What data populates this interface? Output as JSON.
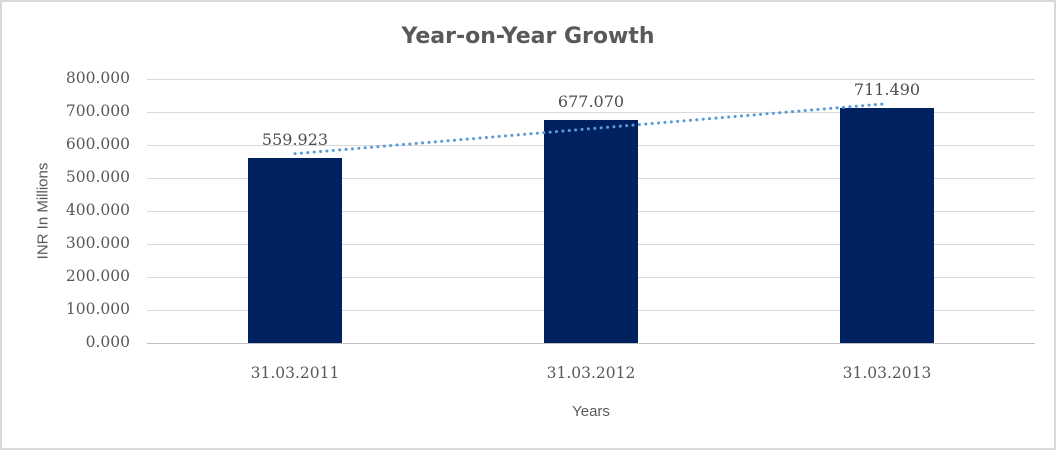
{
  "chart_data": {
    "type": "bar",
    "title": "Year-on-Year Growth",
    "xlabel": "Years",
    "ylabel": "INR In Millions",
    "categories": [
      "31.03.2011",
      "31.03.2012",
      "31.03.2013"
    ],
    "values": [
      559.923,
      677.07,
      711.49
    ],
    "data_labels": [
      "559.923",
      "677.070",
      "711.490"
    ],
    "ylim": [
      0,
      800
    ],
    "ytick_step": 100,
    "ytick_labels": [
      "0.000",
      "100.000",
      "200.000",
      "300.000",
      "400.000",
      "500.000",
      "600.000",
      "700.000",
      "800.000"
    ],
    "grid": true,
    "legend": "none",
    "trendline": {
      "type": "linear",
      "style": "dotted"
    },
    "colors": {
      "bar": "#00215f",
      "trendline": "#5b9bd5",
      "grid": "#d9d9d9",
      "axis_line": "#bfbfbf",
      "title_text": "#595959",
      "tick_text": "#595959",
      "value_text": "#4d4d4d",
      "frame_border": "#d9d9d9"
    }
  }
}
